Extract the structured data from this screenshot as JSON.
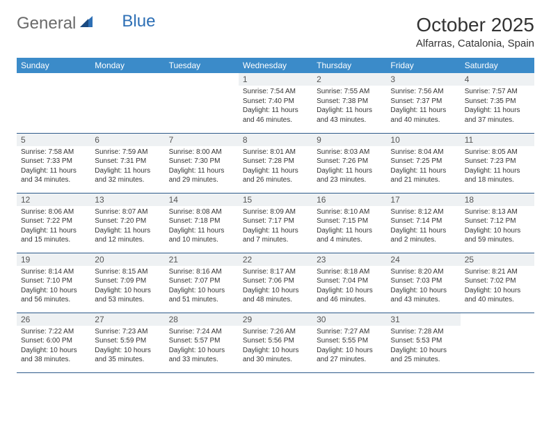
{
  "logo": {
    "general": "General",
    "blue": "Blue"
  },
  "title": "October 2025",
  "location": "Alfarras, Catalonia, Spain",
  "colors": {
    "header_bg": "#3b8bc9",
    "header_text": "#ffffff",
    "daynum_bg": "#eef1f3",
    "row_border": "#2d5a8a",
    "logo_blue": "#2d6fb5"
  },
  "weekdays": [
    "Sunday",
    "Monday",
    "Tuesday",
    "Wednesday",
    "Thursday",
    "Friday",
    "Saturday"
  ],
  "weeks": [
    [
      {
        "n": "",
        "sr": "",
        "ss": "",
        "dl": ""
      },
      {
        "n": "",
        "sr": "",
        "ss": "",
        "dl": ""
      },
      {
        "n": "",
        "sr": "",
        "ss": "",
        "dl": ""
      },
      {
        "n": "1",
        "sr": "Sunrise: 7:54 AM",
        "ss": "Sunset: 7:40 PM",
        "dl": "Daylight: 11 hours and 46 minutes."
      },
      {
        "n": "2",
        "sr": "Sunrise: 7:55 AM",
        "ss": "Sunset: 7:38 PM",
        "dl": "Daylight: 11 hours and 43 minutes."
      },
      {
        "n": "3",
        "sr": "Sunrise: 7:56 AM",
        "ss": "Sunset: 7:37 PM",
        "dl": "Daylight: 11 hours and 40 minutes."
      },
      {
        "n": "4",
        "sr": "Sunrise: 7:57 AM",
        "ss": "Sunset: 7:35 PM",
        "dl": "Daylight: 11 hours and 37 minutes."
      }
    ],
    [
      {
        "n": "5",
        "sr": "Sunrise: 7:58 AM",
        "ss": "Sunset: 7:33 PM",
        "dl": "Daylight: 11 hours and 34 minutes."
      },
      {
        "n": "6",
        "sr": "Sunrise: 7:59 AM",
        "ss": "Sunset: 7:31 PM",
        "dl": "Daylight: 11 hours and 32 minutes."
      },
      {
        "n": "7",
        "sr": "Sunrise: 8:00 AM",
        "ss": "Sunset: 7:30 PM",
        "dl": "Daylight: 11 hours and 29 minutes."
      },
      {
        "n": "8",
        "sr": "Sunrise: 8:01 AM",
        "ss": "Sunset: 7:28 PM",
        "dl": "Daylight: 11 hours and 26 minutes."
      },
      {
        "n": "9",
        "sr": "Sunrise: 8:03 AM",
        "ss": "Sunset: 7:26 PM",
        "dl": "Daylight: 11 hours and 23 minutes."
      },
      {
        "n": "10",
        "sr": "Sunrise: 8:04 AM",
        "ss": "Sunset: 7:25 PM",
        "dl": "Daylight: 11 hours and 21 minutes."
      },
      {
        "n": "11",
        "sr": "Sunrise: 8:05 AM",
        "ss": "Sunset: 7:23 PM",
        "dl": "Daylight: 11 hours and 18 minutes."
      }
    ],
    [
      {
        "n": "12",
        "sr": "Sunrise: 8:06 AM",
        "ss": "Sunset: 7:22 PM",
        "dl": "Daylight: 11 hours and 15 minutes."
      },
      {
        "n": "13",
        "sr": "Sunrise: 8:07 AM",
        "ss": "Sunset: 7:20 PM",
        "dl": "Daylight: 11 hours and 12 minutes."
      },
      {
        "n": "14",
        "sr": "Sunrise: 8:08 AM",
        "ss": "Sunset: 7:18 PM",
        "dl": "Daylight: 11 hours and 10 minutes."
      },
      {
        "n": "15",
        "sr": "Sunrise: 8:09 AM",
        "ss": "Sunset: 7:17 PM",
        "dl": "Daylight: 11 hours and 7 minutes."
      },
      {
        "n": "16",
        "sr": "Sunrise: 8:10 AM",
        "ss": "Sunset: 7:15 PM",
        "dl": "Daylight: 11 hours and 4 minutes."
      },
      {
        "n": "17",
        "sr": "Sunrise: 8:12 AM",
        "ss": "Sunset: 7:14 PM",
        "dl": "Daylight: 11 hours and 2 minutes."
      },
      {
        "n": "18",
        "sr": "Sunrise: 8:13 AM",
        "ss": "Sunset: 7:12 PM",
        "dl": "Daylight: 10 hours and 59 minutes."
      }
    ],
    [
      {
        "n": "19",
        "sr": "Sunrise: 8:14 AM",
        "ss": "Sunset: 7:10 PM",
        "dl": "Daylight: 10 hours and 56 minutes."
      },
      {
        "n": "20",
        "sr": "Sunrise: 8:15 AM",
        "ss": "Sunset: 7:09 PM",
        "dl": "Daylight: 10 hours and 53 minutes."
      },
      {
        "n": "21",
        "sr": "Sunrise: 8:16 AM",
        "ss": "Sunset: 7:07 PM",
        "dl": "Daylight: 10 hours and 51 minutes."
      },
      {
        "n": "22",
        "sr": "Sunrise: 8:17 AM",
        "ss": "Sunset: 7:06 PM",
        "dl": "Daylight: 10 hours and 48 minutes."
      },
      {
        "n": "23",
        "sr": "Sunrise: 8:18 AM",
        "ss": "Sunset: 7:04 PM",
        "dl": "Daylight: 10 hours and 46 minutes."
      },
      {
        "n": "24",
        "sr": "Sunrise: 8:20 AM",
        "ss": "Sunset: 7:03 PM",
        "dl": "Daylight: 10 hours and 43 minutes."
      },
      {
        "n": "25",
        "sr": "Sunrise: 8:21 AM",
        "ss": "Sunset: 7:02 PM",
        "dl": "Daylight: 10 hours and 40 minutes."
      }
    ],
    [
      {
        "n": "26",
        "sr": "Sunrise: 7:22 AM",
        "ss": "Sunset: 6:00 PM",
        "dl": "Daylight: 10 hours and 38 minutes."
      },
      {
        "n": "27",
        "sr": "Sunrise: 7:23 AM",
        "ss": "Sunset: 5:59 PM",
        "dl": "Daylight: 10 hours and 35 minutes."
      },
      {
        "n": "28",
        "sr": "Sunrise: 7:24 AM",
        "ss": "Sunset: 5:57 PM",
        "dl": "Daylight: 10 hours and 33 minutes."
      },
      {
        "n": "29",
        "sr": "Sunrise: 7:26 AM",
        "ss": "Sunset: 5:56 PM",
        "dl": "Daylight: 10 hours and 30 minutes."
      },
      {
        "n": "30",
        "sr": "Sunrise: 7:27 AM",
        "ss": "Sunset: 5:55 PM",
        "dl": "Daylight: 10 hours and 27 minutes."
      },
      {
        "n": "31",
        "sr": "Sunrise: 7:28 AM",
        "ss": "Sunset: 5:53 PM",
        "dl": "Daylight: 10 hours and 25 minutes."
      },
      {
        "n": "",
        "sr": "",
        "ss": "",
        "dl": ""
      }
    ]
  ]
}
